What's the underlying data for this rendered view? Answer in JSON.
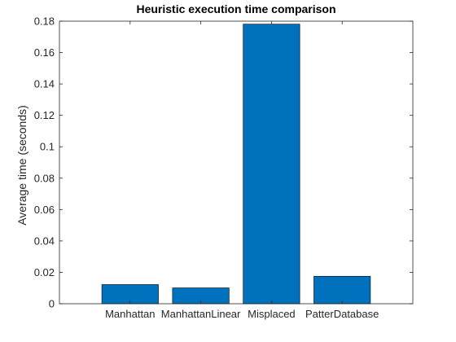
{
  "chart_data": {
    "type": "bar",
    "title": "Heuristic execution time comparison",
    "xlabel": "",
    "ylabel": "Average time (seconds)",
    "categories": [
      "Manhattan",
      "ManhattanLinear",
      "Misplaced",
      "PatterDatabase"
    ],
    "values": [
      0.0122,
      0.0101,
      0.1781,
      0.0175
    ],
    "ylim": [
      0,
      0.18
    ],
    "yticks": [
      "0",
      "0.02",
      "0.04",
      "0.06",
      "0.08",
      "0.1",
      "0.12",
      "0.14",
      "0.16",
      "0.18"
    ],
    "grid": false,
    "legend": "none",
    "bar_color": "#0072BD",
    "bar_edge_color": "#000000"
  }
}
